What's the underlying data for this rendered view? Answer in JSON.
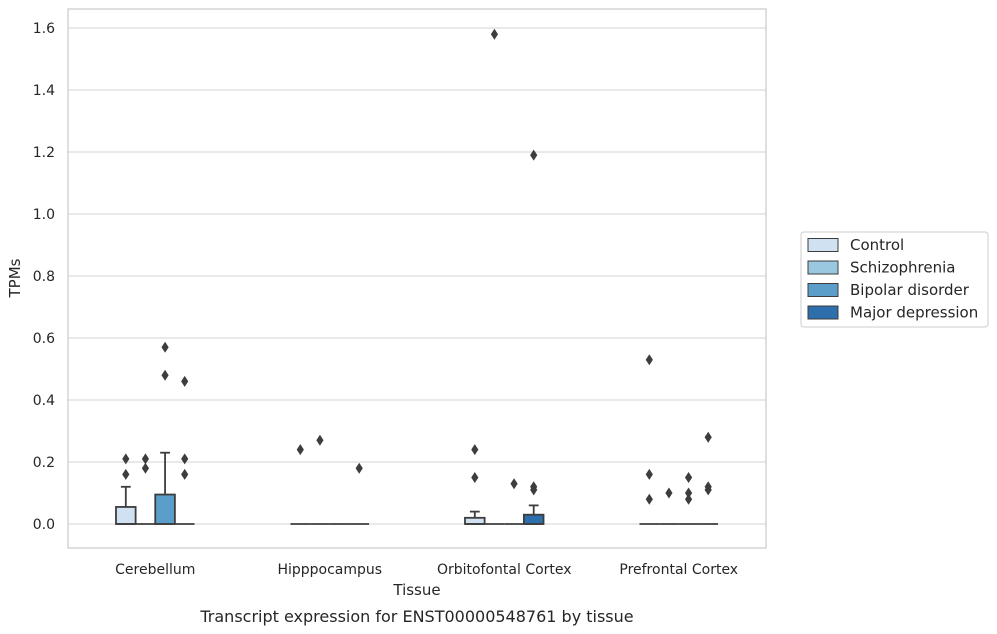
{
  "chart_data": {
    "type": "box",
    "title": "",
    "caption": "Transcript expression for ENST00000548761 by tissue",
    "xlabel": "Tissue",
    "ylabel": "TPMs",
    "ylim": [
      -0.08,
      1.66
    ],
    "yticks": [
      0.0,
      0.2,
      0.4,
      0.6,
      0.8,
      1.0,
      1.2,
      1.4,
      1.6
    ],
    "ytick_labels": [
      "0.0",
      "0.2",
      "0.4",
      "0.6",
      "0.8",
      "1.0",
      "1.2",
      "1.4",
      "1.6"
    ],
    "grid": "horizontal",
    "legend_position": "right",
    "categories": [
      "Cerebellum",
      "Hipppocampus",
      "Orbitofontal Cortex",
      "Prefrontal Cortex"
    ],
    "series": [
      {
        "name": "Control",
        "color": "#d0e1f2",
        "boxes": [
          {
            "q1": 0.0,
            "median": 0.0,
            "q3": 0.055,
            "whisker_low": 0.0,
            "whisker_high": 0.12,
            "outliers": [
              0.16,
              0.21
            ]
          },
          {
            "q1": 0.0,
            "median": 0.0,
            "q3": 0.0,
            "whisker_low": 0.0,
            "whisker_high": 0.0,
            "outliers": [
              0.24
            ]
          },
          {
            "q1": 0.0,
            "median": 0.0,
            "q3": 0.02,
            "whisker_low": 0.0,
            "whisker_high": 0.04,
            "outliers": [
              0.15,
              0.24
            ]
          },
          {
            "q1": 0.0,
            "median": 0.0,
            "q3": 0.0,
            "whisker_low": 0.0,
            "whisker_high": 0.0,
            "outliers": [
              0.08,
              0.16,
              0.53
            ]
          }
        ]
      },
      {
        "name": "Schizophrenia",
        "color": "#9ac8e0",
        "boxes": [
          {
            "q1": 0.0,
            "median": 0.0,
            "q3": 0.0,
            "whisker_low": 0.0,
            "whisker_high": 0.0,
            "outliers": [
              0.18,
              0.21
            ]
          },
          {
            "q1": 0.0,
            "median": 0.0,
            "q3": 0.0,
            "whisker_low": 0.0,
            "whisker_high": 0.0,
            "outliers": [
              0.27
            ]
          },
          {
            "q1": 0.0,
            "median": 0.0,
            "q3": 0.0,
            "whisker_low": 0.0,
            "whisker_high": 0.0,
            "outliers": [
              1.58
            ]
          },
          {
            "q1": 0.0,
            "median": 0.0,
            "q3": 0.0,
            "whisker_low": 0.0,
            "whisker_high": 0.0,
            "outliers": [
              0.1
            ]
          }
        ]
      },
      {
        "name": "Bipolar disorder",
        "color": "#5a9ec9",
        "boxes": [
          {
            "q1": 0.0,
            "median": 0.0,
            "q3": 0.095,
            "whisker_low": 0.0,
            "whisker_high": 0.23,
            "outliers": [
              0.48,
              0.57
            ]
          },
          {
            "q1": 0.0,
            "median": 0.0,
            "q3": 0.0,
            "whisker_low": 0.0,
            "whisker_high": 0.0,
            "outliers": []
          },
          {
            "q1": 0.0,
            "median": 0.0,
            "q3": 0.0,
            "whisker_low": 0.0,
            "whisker_high": 0.0,
            "outliers": [
              0.13
            ]
          },
          {
            "q1": 0.0,
            "median": 0.0,
            "q3": 0.0,
            "whisker_low": 0.0,
            "whisker_high": 0.0,
            "outliers": [
              0.08,
              0.1,
              0.15
            ]
          }
        ]
      },
      {
        "name": "Major depression",
        "color": "#2d6fad",
        "boxes": [
          {
            "q1": 0.0,
            "median": 0.0,
            "q3": 0.0,
            "whisker_low": 0.0,
            "whisker_high": 0.0,
            "outliers": [
              0.16,
              0.21,
              0.46
            ]
          },
          {
            "q1": 0.0,
            "median": 0.0,
            "q3": 0.0,
            "whisker_low": 0.0,
            "whisker_high": 0.0,
            "outliers": [
              0.18
            ]
          },
          {
            "q1": 0.0,
            "median": 0.0,
            "q3": 0.03,
            "whisker_low": 0.0,
            "whisker_high": 0.06,
            "outliers": [
              0.11,
              0.12,
              1.19
            ]
          },
          {
            "q1": 0.0,
            "median": 0.0,
            "q3": 0.0,
            "whisker_low": 0.0,
            "whisker_high": 0.0,
            "outliers": [
              0.11,
              0.12,
              0.28
            ]
          }
        ]
      }
    ]
  }
}
